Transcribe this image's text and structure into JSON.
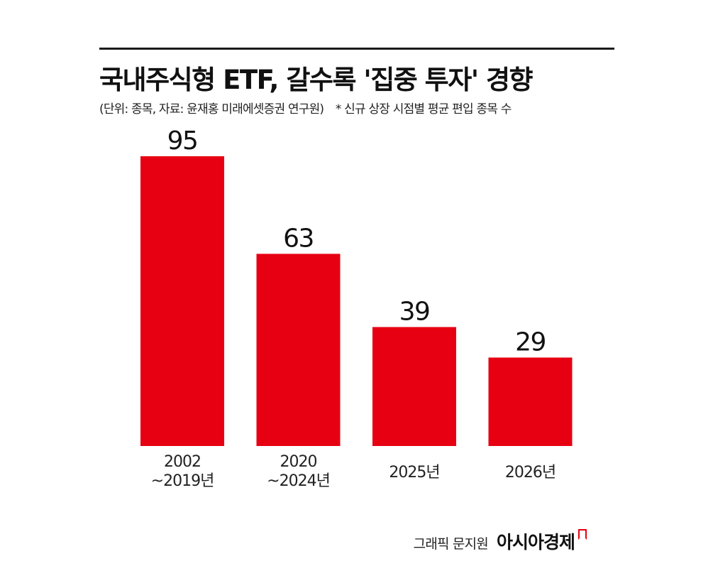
{
  "header": {
    "title": "국내주식형 ETF, 갈수록 '집중 투자' 경향",
    "unit_source": "(단위: 종목, 자료: 윤재홍 미래에셋증권 연구원)",
    "note": "* 신규 상장 시점별 평균 편입 종목 수"
  },
  "footer": {
    "graphic_credit": "그래픽 문지원",
    "brand": "아시아경제"
  },
  "colors": {
    "bar": "#e60012",
    "text": "#1a1a1a"
  },
  "chart_data": {
    "type": "bar",
    "title": "국내주식형 ETF, 갈수록 '집중 투자' 경향",
    "categories": [
      [
        "2002",
        "~2019년"
      ],
      [
        "2020",
        "~2024년"
      ],
      [
        "2025년"
      ],
      [
        "2026년"
      ]
    ],
    "values": [
      95,
      63,
      39,
      29
    ],
    "data_labels": [
      "95",
      "63",
      "39",
      "29"
    ],
    "ylim": [
      0,
      95
    ],
    "grid": false,
    "legend": "none"
  }
}
